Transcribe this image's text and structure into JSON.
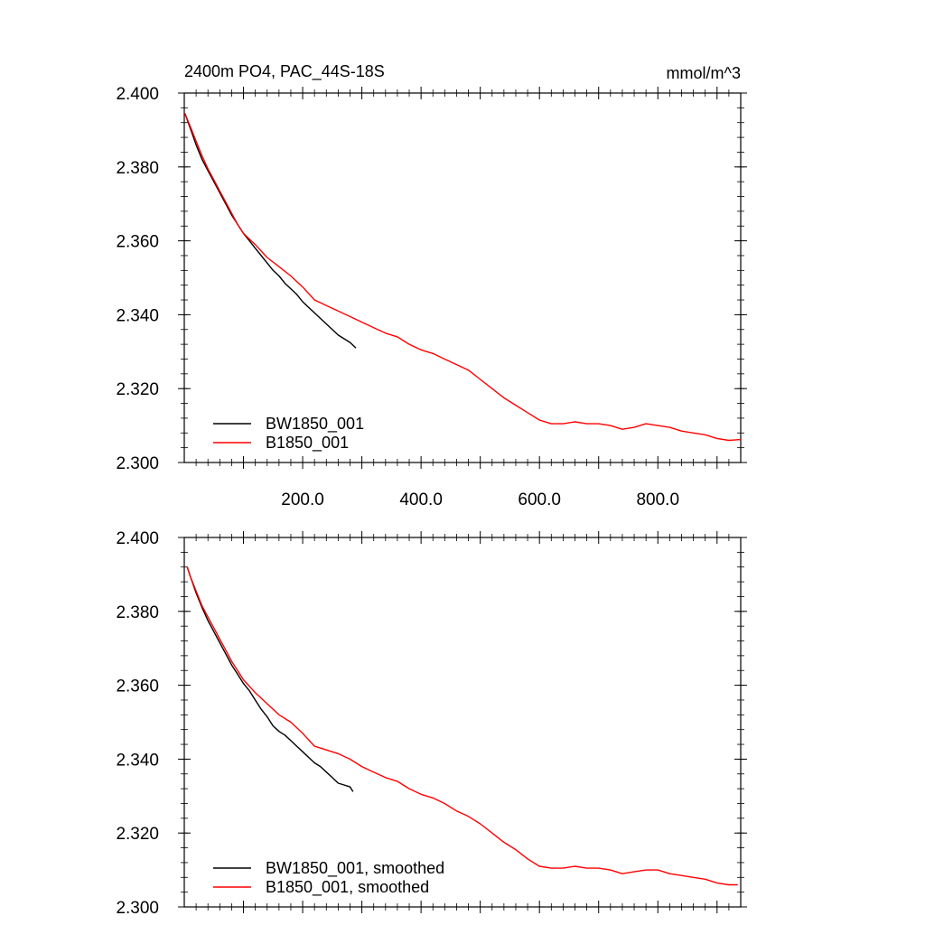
{
  "chart_data": [
    {
      "type": "line",
      "title": "2400m PO4, PAC_44S-18S",
      "units": "mmol/m^3",
      "xlim": [
        0,
        940
      ],
      "ylim": [
        2.3,
        2.4
      ],
      "yticks": [
        2.3,
        2.32,
        2.34,
        2.36,
        2.38,
        2.4
      ],
      "ytick_labels": [
        "2.300",
        "2.320",
        "2.340",
        "2.360",
        "2.380",
        "2.400"
      ],
      "xticks": [
        200,
        400,
        600,
        800
      ],
      "xtick_labels": [
        "200.0",
        "400.0",
        "600.0",
        "800.0"
      ],
      "legend_position": "bottom-left",
      "series": [
        {
          "name": "BW1850_001",
          "color": "#000000",
          "x": [
            1,
            10,
            20,
            30,
            40,
            50,
            60,
            70,
            80,
            90,
            100,
            110,
            120,
            130,
            140,
            150,
            160,
            170,
            180,
            190,
            200,
            210,
            220,
            230,
            240,
            250,
            260,
            270,
            280,
            290
          ],
          "y": [
            2.3945,
            2.3905,
            2.386,
            2.382,
            2.379,
            2.376,
            2.373,
            2.37,
            2.367,
            2.3645,
            2.362,
            2.36,
            2.358,
            2.356,
            2.354,
            2.352,
            2.3505,
            2.3485,
            2.347,
            2.3455,
            2.3435,
            2.342,
            2.3405,
            2.339,
            2.3375,
            2.336,
            2.3345,
            2.3335,
            2.3325,
            2.331
          ]
        },
        {
          "name": "B1850_001",
          "color": "#ff0000",
          "x": [
            1,
            10,
            20,
            30,
            40,
            50,
            60,
            70,
            80,
            90,
            100,
            120,
            140,
            160,
            180,
            200,
            220,
            240,
            260,
            280,
            300,
            320,
            340,
            360,
            380,
            400,
            420,
            440,
            460,
            480,
            500,
            520,
            540,
            560,
            580,
            600,
            620,
            640,
            660,
            680,
            700,
            720,
            740,
            760,
            780,
            800,
            820,
            840,
            860,
            880,
            900,
            920,
            940
          ],
          "y": [
            2.3945,
            2.391,
            2.387,
            2.383,
            2.3795,
            2.3765,
            2.3735,
            2.3705,
            2.3675,
            2.3645,
            2.362,
            2.359,
            2.3555,
            2.353,
            2.3505,
            2.3475,
            2.344,
            2.3425,
            2.341,
            2.3395,
            2.338,
            2.3365,
            2.335,
            2.334,
            2.332,
            2.3305,
            2.3295,
            2.328,
            2.3265,
            2.325,
            2.3225,
            2.32,
            2.3175,
            2.3155,
            2.3135,
            2.3115,
            2.3105,
            2.3105,
            2.311,
            2.3105,
            2.3105,
            2.31,
            2.309,
            2.3095,
            2.3105,
            2.31,
            2.3095,
            2.3085,
            2.308,
            2.3075,
            2.3065,
            2.306,
            2.3062
          ]
        }
      ]
    },
    {
      "type": "line",
      "xlim": [
        0,
        940
      ],
      "ylim": [
        2.3,
        2.4
      ],
      "yticks": [
        2.3,
        2.32,
        2.34,
        2.36,
        2.38,
        2.4
      ],
      "ytick_labels": [
        "2.300",
        "2.320",
        "2.340",
        "2.360",
        "2.380",
        "2.400"
      ],
      "legend_position": "bottom-left",
      "series": [
        {
          "name": "BW1850_001, smoothed",
          "color": "#000000",
          "x": [
            5,
            10,
            20,
            30,
            40,
            50,
            60,
            70,
            80,
            90,
            100,
            110,
            120,
            130,
            140,
            150,
            160,
            170,
            180,
            190,
            200,
            210,
            220,
            230,
            240,
            250,
            260,
            270,
            280,
            285
          ],
          "y": [
            2.392,
            2.3895,
            2.385,
            2.381,
            2.3775,
            2.3745,
            2.3715,
            2.3685,
            2.3655,
            2.363,
            2.3605,
            2.3585,
            2.356,
            2.3535,
            2.3515,
            2.349,
            2.3475,
            2.3465,
            2.345,
            2.3435,
            2.342,
            2.3405,
            2.339,
            2.338,
            2.3365,
            2.335,
            2.3335,
            2.333,
            2.3325,
            2.3312
          ]
        },
        {
          "name": "B1850_001, smoothed",
          "color": "#ff0000",
          "x": [
            5,
            10,
            20,
            30,
            40,
            50,
            60,
            70,
            80,
            90,
            100,
            120,
            140,
            160,
            180,
            200,
            220,
            240,
            260,
            280,
            300,
            320,
            340,
            360,
            380,
            400,
            420,
            440,
            460,
            480,
            500,
            520,
            540,
            560,
            580,
            600,
            620,
            640,
            660,
            680,
            700,
            720,
            740,
            760,
            780,
            800,
            820,
            840,
            860,
            880,
            900,
            920,
            935
          ],
          "y": [
            2.392,
            2.3895,
            2.3855,
            2.3815,
            2.3785,
            2.3755,
            2.3725,
            2.3695,
            2.3665,
            2.364,
            2.3615,
            2.358,
            2.355,
            2.352,
            2.35,
            2.347,
            2.3435,
            2.3425,
            2.3415,
            2.34,
            2.338,
            2.3365,
            2.335,
            2.334,
            2.332,
            2.3305,
            2.3295,
            2.328,
            2.326,
            2.3245,
            2.3225,
            2.32,
            2.3175,
            2.3155,
            2.313,
            2.311,
            2.3105,
            2.3105,
            2.311,
            2.3105,
            2.3105,
            2.31,
            2.309,
            2.3095,
            2.31,
            2.31,
            2.309,
            2.3085,
            2.308,
            2.3075,
            2.3065,
            2.306,
            2.306
          ]
        }
      ]
    }
  ]
}
